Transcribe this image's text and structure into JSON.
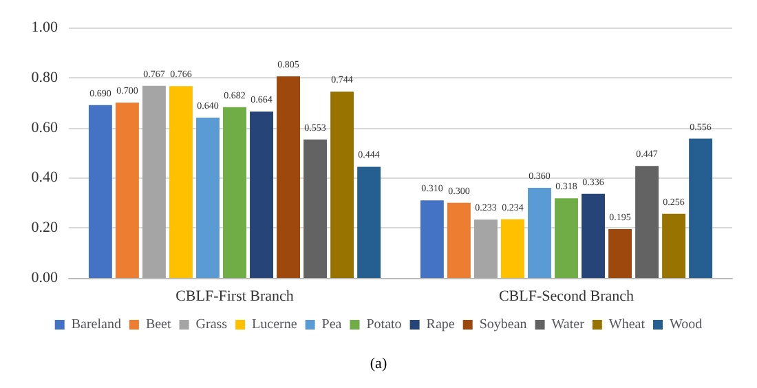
{
  "chart_data": {
    "type": "bar",
    "categories": [
      "CBLF-First Branch",
      "CBLF-Second Branch"
    ],
    "series": [
      {
        "name": "Bareland",
        "color": "#4472c4",
        "values": [
          0.69,
          0.31
        ],
        "value_labels": [
          "0.690",
          "0.310"
        ]
      },
      {
        "name": "Beet",
        "color": "#ed7d31",
        "values": [
          0.7,
          0.3
        ],
        "value_labels": [
          "0.700",
          "0.300"
        ]
      },
      {
        "name": "Grass",
        "color": "#a5a5a5",
        "values": [
          0.767,
          0.233
        ],
        "value_labels": [
          "0.767",
          "0.233"
        ]
      },
      {
        "name": "Lucerne",
        "color": "#ffc000",
        "values": [
          0.766,
          0.234
        ],
        "value_labels": [
          "0.766",
          "0.234"
        ]
      },
      {
        "name": "Pea",
        "color": "#5b9bd5",
        "values": [
          0.64,
          0.36
        ],
        "value_labels": [
          "0.640",
          "0.360"
        ]
      },
      {
        "name": "Potato",
        "color": "#70ad47",
        "values": [
          0.682,
          0.318
        ],
        "value_labels": [
          "0.682",
          "0.318"
        ]
      },
      {
        "name": "Rape",
        "color": "#264478",
        "values": [
          0.664,
          0.336
        ],
        "value_labels": [
          "0.664",
          "0.336"
        ]
      },
      {
        "name": "Soybean",
        "color": "#9e480e",
        "values": [
          0.805,
          0.195
        ],
        "value_labels": [
          "0.805",
          "0.195"
        ]
      },
      {
        "name": "Water",
        "color": "#636363",
        "values": [
          0.553,
          0.447
        ],
        "value_labels": [
          "0.553",
          "0.447"
        ]
      },
      {
        "name": "Wheat",
        "color": "#997300",
        "values": [
          0.744,
          0.256
        ],
        "value_labels": [
          "0.744",
          "0.256"
        ]
      },
      {
        "name": "Wood",
        "color": "#255e91",
        "values": [
          0.444,
          0.556
        ],
        "value_labels": [
          "0.444",
          "0.556"
        ]
      }
    ],
    "ylim": [
      0,
      1
    ],
    "yticks": [
      {
        "value": 0,
        "label": "0.00"
      },
      {
        "value": 0.2,
        "label": "0.20"
      },
      {
        "value": 0.4,
        "label": "0.40"
      },
      {
        "value": 0.6,
        "label": "0.60"
      },
      {
        "value": 0.8,
        "label": "0.80"
      },
      {
        "value": 1,
        "label": "1.00"
      }
    ],
    "grid": "y",
    "legend": "bottom",
    "annotations": [
      "(a)"
    ]
  }
}
